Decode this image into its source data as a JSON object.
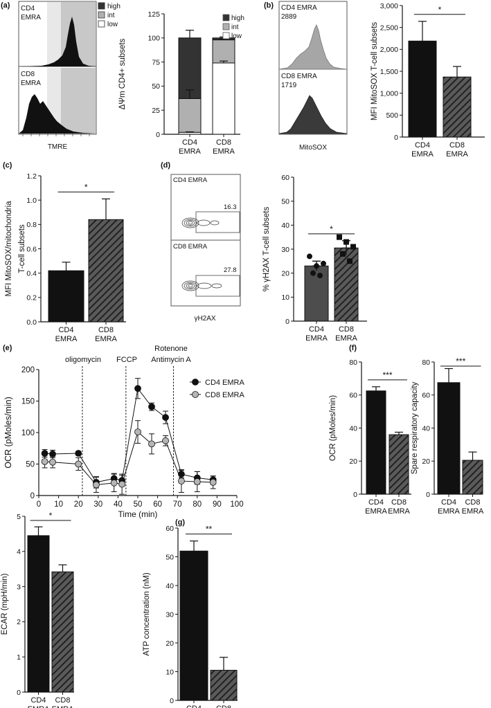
{
  "panel_labels": [
    "(a)",
    "(b)",
    "(c)",
    "(d)",
    "(e)",
    "(f)",
    "(g)"
  ],
  "colors": {
    "cd4_bar": "#111111",
    "cd8_bar": "#555555",
    "high": "#333333",
    "int": "#b0b0b0",
    "low": "#ffffff",
    "cd8_gh2ax_bar": "#4d4d4d",
    "cd4_line_marker": "#111111",
    "cd8_line_marker": "#b5b5b5"
  },
  "flow_a": {
    "top_label": [
      "CD4",
      "EMRA"
    ],
    "bottom_label": [
      "CD8",
      "EMRA"
    ],
    "xlabel": "TMRE",
    "legend": [
      "high",
      "int",
      "low"
    ]
  },
  "flow_b": {
    "top_label": [
      "CD4 EMRA",
      "2889"
    ],
    "bottom_label": [
      "CD8 EMRA",
      "1719"
    ],
    "xlabel": "MitoSOX"
  },
  "flow_d": {
    "top_label": "CD4 EMRA",
    "top_value": "16.3",
    "bottom_label": "CD8 EMRA",
    "bottom_value": "27.8",
    "xlabel": "γH2AX"
  },
  "e_annotations": [
    "oligomycin",
    "FCCP",
    "Rotenone",
    "Antimycin A"
  ],
  "chart_data": [
    {
      "id": "a_stacked",
      "type": "bar",
      "stacked": true,
      "categories": [
        [
          "CD4",
          "EMRA"
        ],
        [
          "CD8",
          "EMRA"
        ]
      ],
      "series": [
        {
          "name": "low",
          "values": [
            2,
            74
          ],
          "err": [
            0.5,
            2
          ]
        },
        {
          "name": "int",
          "values": [
            35,
            24
          ],
          "err": [
            9,
            1
          ]
        },
        {
          "name": "high",
          "values": [
            63,
            2
          ],
          "err": [
            8,
            1
          ]
        }
      ],
      "ylabel": "ΔΨm CD4+ subsets",
      "ylim": [
        0,
        125
      ],
      "yticks": [
        0,
        25,
        50,
        75,
        100,
        125
      ],
      "legend": [
        "high",
        "int",
        "low"
      ]
    },
    {
      "id": "b_mitosox",
      "type": "bar",
      "categories": [
        [
          "CD4",
          "EMRA"
        ],
        [
          "CD8",
          "EMRA"
        ]
      ],
      "values": [
        2190,
        1370
      ],
      "err": [
        450,
        240
      ],
      "ylabel": "MFI MitoSOX  T-cell subsets",
      "ylim": [
        0,
        3000
      ],
      "yticks": [
        "0",
        "500",
        "1,000",
        "1,500",
        "2,000",
        "2,500",
        "3,000"
      ],
      "significance": "*"
    },
    {
      "id": "c_mitosox_mito",
      "type": "bar",
      "categories": [
        [
          "CD4",
          "EMRA"
        ],
        [
          "CD8",
          "EMRA"
        ]
      ],
      "values": [
        0.42,
        0.84
      ],
      "err": [
        0.07,
        0.17
      ],
      "ylabel": [
        "MFI MitoSOX/mitochondria",
        "T-cell subsets"
      ],
      "ylim": [
        0,
        1.2
      ],
      "yticks": [
        "0.0",
        "0.2",
        "0.4",
        "0.6",
        "0.8",
        "1.0",
        "1.2"
      ],
      "significance": "*"
    },
    {
      "id": "d_gh2ax",
      "type": "bar",
      "categories": [
        [
          "CD4",
          "EMRA"
        ],
        [
          "CD8",
          "EMRA"
        ]
      ],
      "values": [
        23,
        30.5
      ],
      "err": [
        2,
        3
      ],
      "points": [
        [
          27,
          20,
          23,
          19,
          24
        ],
        [
          35,
          28,
          33,
          25,
          31
        ]
      ],
      "ylabel": "% γH2AX T-cell subsets",
      "ylim": [
        0,
        60
      ],
      "yticks": [
        0,
        10,
        20,
        30,
        40,
        50,
        60
      ],
      "significance": "*"
    },
    {
      "id": "e_ocr_time",
      "type": "line",
      "xlabel": "Time (min)",
      "ylabel": "OCR (pMoles/min)",
      "xlim": [
        0,
        100
      ],
      "ylim": [
        0,
        200
      ],
      "xticks": [
        0,
        10,
        20,
        30,
        40,
        50,
        60,
        70,
        80,
        90,
        100
      ],
      "yticks": [
        0,
        50,
        100,
        150,
        200
      ],
      "injections": [
        22,
        44,
        68
      ],
      "series": [
        {
          "name": "CD4 EMRA",
          "x": [
            3,
            7,
            20,
            29,
            38,
            42,
            50,
            57,
            64,
            72,
            80,
            88
          ],
          "y": [
            67,
            66,
            67,
            21,
            27,
            24,
            170,
            141,
            124,
            34,
            28,
            25
          ],
          "err": [
            6,
            6,
            3,
            9,
            8,
            8,
            16,
            6,
            10,
            6,
            10,
            6
          ]
        },
        {
          "name": "CD8 EMRA",
          "x": [
            3,
            7,
            20,
            29,
            38,
            42,
            50,
            57,
            64,
            72,
            80,
            88
          ],
          "y": [
            54,
            53,
            50,
            17,
            20,
            18,
            101,
            82,
            87,
            23,
            22,
            21
          ],
          "err": [
            10,
            9,
            10,
            12,
            14,
            16,
            18,
            16,
            8,
            18,
            16,
            10
          ]
        }
      ]
    },
    {
      "id": "f_ocr",
      "type": "bar",
      "categories": [
        [
          "CD4",
          "EMRA"
        ],
        [
          "CD8",
          "EMRA"
        ]
      ],
      "values": [
        62.5,
        36
      ],
      "err": [
        2.5,
        1.5
      ],
      "ylabel": "OCR (pMoles/min)",
      "ylim": [
        0,
        80
      ],
      "yticks": [
        0,
        20,
        40,
        60,
        80
      ],
      "significance": "***"
    },
    {
      "id": "f_spare",
      "type": "bar",
      "categories": [
        [
          "CD4",
          "EMRA"
        ],
        [
          "CD8",
          "EMRA"
        ]
      ],
      "values": [
        67.5,
        20.5
      ],
      "err": [
        8.5,
        5
      ],
      "ylabel": "Spare respiratory capacity",
      "ylim": [
        0,
        80
      ],
      "yticks": [
        0,
        20,
        40,
        60,
        80
      ],
      "significance": "***"
    },
    {
      "id": "ecar",
      "type": "bar",
      "categories": [
        [
          "CD4",
          "EMRA"
        ],
        [
          "CD8",
          "EMRA"
        ]
      ],
      "values": [
        4.45,
        3.42
      ],
      "err": [
        0.25,
        0.2
      ],
      "ylabel": "ECAR (mpH/min)",
      "ylim": [
        0,
        5
      ],
      "yticks": [
        0,
        1,
        2,
        3,
        4,
        5
      ],
      "significance": "*"
    },
    {
      "id": "g_atp",
      "type": "bar",
      "categories": [
        [
          "CD4",
          "EMRA"
        ],
        [
          "CD8",
          "EMRA"
        ]
      ],
      "values": [
        52,
        10.5
      ],
      "err": [
        3.5,
        4.5
      ],
      "ylabel": "ATP concentration (nM)",
      "ylim": [
        0,
        60
      ],
      "yticks": [
        0,
        10,
        20,
        30,
        40,
        50,
        60
      ],
      "significance": "**"
    }
  ]
}
